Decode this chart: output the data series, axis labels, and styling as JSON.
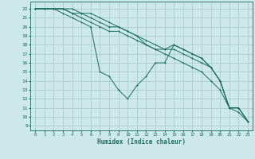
{
  "xlabel": "Humidex (Indice chaleur)",
  "bg_color": "#cce8e8",
  "grid_color": "#aacccc",
  "line_color": "#1a6b5a",
  "xlim": [
    -0.5,
    23.5
  ],
  "ylim": [
    8.5,
    22.8
  ],
  "yticks": [
    9,
    10,
    11,
    12,
    13,
    14,
    15,
    16,
    17,
    18,
    19,
    20,
    21,
    22
  ],
  "xticks": [
    0,
    1,
    2,
    3,
    4,
    5,
    6,
    7,
    8,
    9,
    10,
    11,
    12,
    13,
    14,
    15,
    16,
    17,
    18,
    19,
    20,
    21,
    22,
    23
  ],
  "line1_x": [
    0,
    1,
    2,
    3,
    4,
    5,
    6,
    7,
    8,
    9,
    10,
    11,
    12,
    13,
    14,
    15,
    16,
    17,
    18,
    19,
    20,
    21,
    22,
    23
  ],
  "line1_y": [
    22,
    22,
    22,
    22,
    21.5,
    21,
    20.5,
    20,
    19.5,
    19.5,
    19,
    18.5,
    18,
    17.5,
    17,
    16.5,
    16,
    15.5,
    15,
    14,
    13,
    11,
    10.5,
    9.5
  ],
  "line2_x": [
    0,
    1,
    2,
    3,
    4,
    5,
    6,
    7,
    8,
    9,
    10,
    11,
    12,
    13,
    14,
    15,
    16,
    17,
    18,
    19,
    20,
    21,
    22,
    23
  ],
  "line2_y": [
    22,
    22,
    22,
    22,
    21.5,
    21.5,
    21.5,
    21,
    20.5,
    20,
    19.5,
    19,
    18.5,
    18,
    17.5,
    17.5,
    17,
    16.5,
    16,
    15.5,
    14,
    11,
    11,
    9.5
  ],
  "line3_x": [
    0,
    1,
    2,
    3,
    4,
    5,
    6,
    7,
    8,
    9,
    10,
    11,
    12,
    13,
    14,
    15,
    16,
    17,
    18,
    19,
    20,
    21,
    22,
    23
  ],
  "line3_y": [
    22,
    22,
    22,
    22,
    22,
    21.5,
    21,
    20.5,
    20,
    20,
    19.5,
    19,
    18,
    17.5,
    17.5,
    18,
    17.5,
    17,
    16.5,
    15.5,
    14,
    11,
    11,
    9.5
  ],
  "line4_x": [
    0,
    1,
    2,
    3,
    4,
    5,
    6,
    7,
    8,
    9,
    10,
    11,
    12,
    13,
    14,
    15,
    16,
    17,
    18,
    19,
    20,
    21,
    22,
    23
  ],
  "line4_y": [
    22,
    22,
    22,
    21.5,
    21,
    20.5,
    20,
    15,
    14.5,
    13,
    12,
    13.5,
    14.5,
    16,
    16,
    18,
    17.5,
    17,
    16.5,
    15.5,
    14,
    11,
    11,
    9.5
  ]
}
